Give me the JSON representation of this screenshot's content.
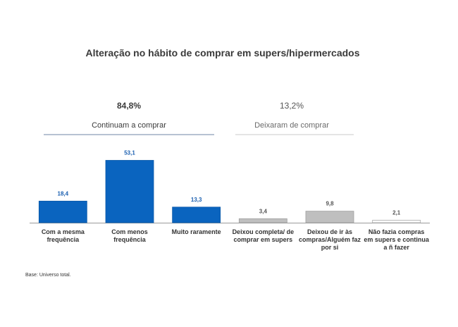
{
  "chart_data": {
    "type": "bar",
    "title": "Alteração no hábito de comprar em supers/hipermercados",
    "groups": [
      {
        "percent": "84,8%",
        "label": "Continuam a comprar",
        "category_count": 3
      },
      {
        "percent": "13,2%",
        "label": "Deixaram de comprar",
        "category_count": 3
      }
    ],
    "categories": [
      [
        "Com a mesma",
        "frequência"
      ],
      [
        "Com menos",
        "frequência"
      ],
      [
        "Muito raramente"
      ],
      [
        "Deixou completa/ de",
        "comprar em supers"
      ],
      [
        "Deixou de ir às",
        "compras/Alguém faz",
        "por si"
      ],
      [
        "Não fazia compras",
        "em supers e continua",
        "a ñ fazer"
      ]
    ],
    "values": [
      18.4,
      53.1,
      13.3,
      3.4,
      9.8,
      2.1
    ],
    "value_labels": [
      "18,4",
      "53,1",
      "13,3",
      "3,4",
      "9,8",
      "2,1"
    ],
    "bar_colors": [
      "#0a64bf",
      "#0a64bf",
      "#0a64bf",
      "#bfbfbf",
      "#bfbfbf",
      "#ffffff"
    ],
    "value_label_colors": [
      "#1a5fb0",
      "#1a5fb0",
      "#1a5fb0",
      "#555555",
      "#555555",
      "#555555"
    ],
    "ylim": [
      0,
      60
    ],
    "grid": false,
    "legend": "none",
    "note": "Base: Universo total."
  }
}
